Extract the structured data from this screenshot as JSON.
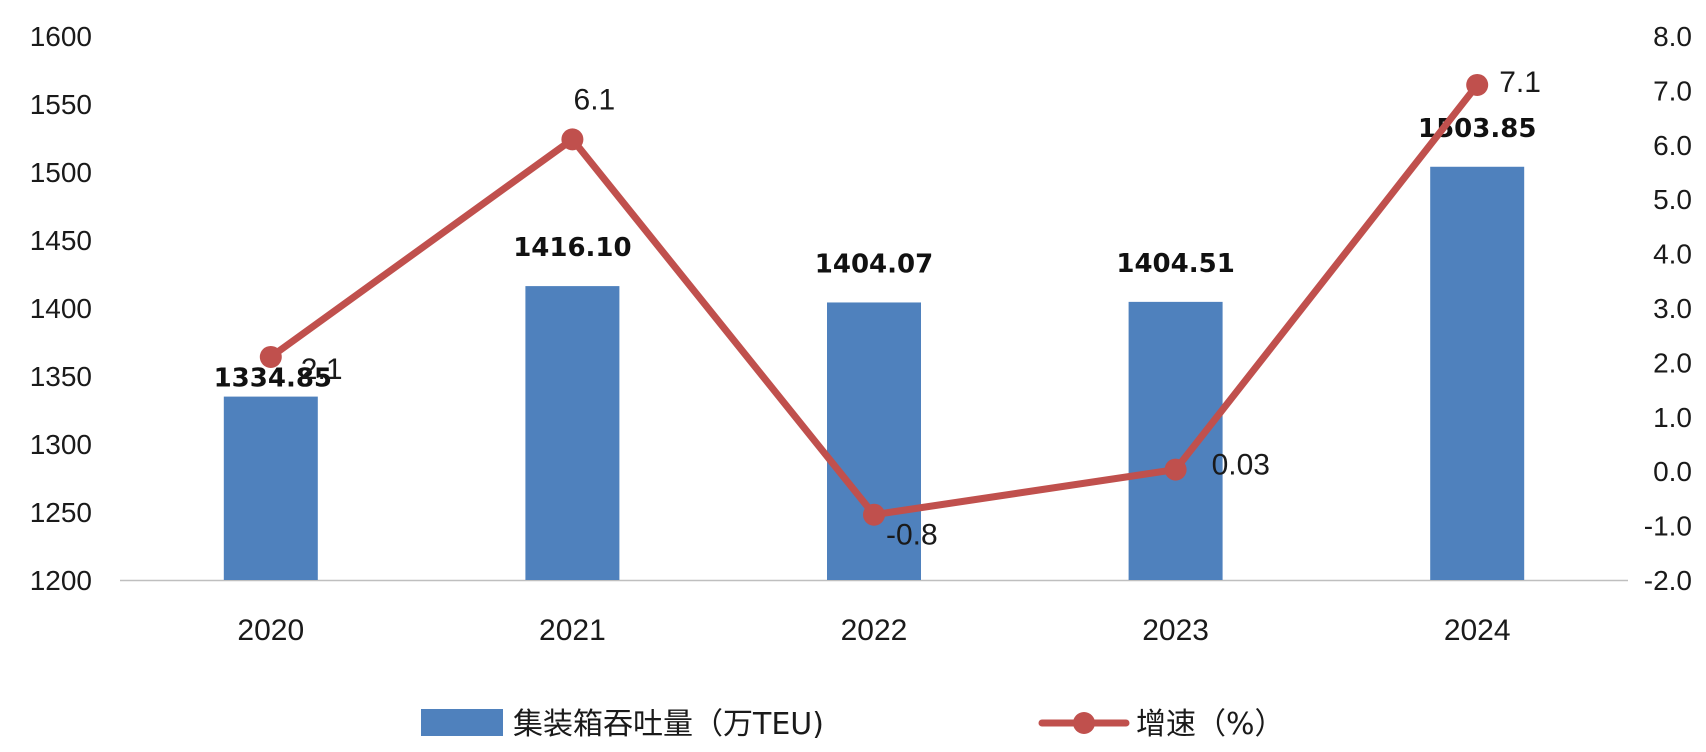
{
  "chart_data": {
    "type": "bar+line",
    "categories": [
      "2020",
      "2021",
      "2022",
      "2023",
      "2024"
    ],
    "series": [
      {
        "name": "集装箱吞吐量（万TEU)",
        "type": "bar",
        "axis": "left",
        "color": "#4f81bd",
        "values": [
          1334.85,
          1416.1,
          1404.07,
          1404.51,
          1503.85
        ],
        "labels": [
          "1334.85",
          "1416.10",
          "1404.07",
          "1404.51",
          "1503.85"
        ]
      },
      {
        "name": "增速（%）",
        "type": "line",
        "axis": "right",
        "color": "#c0504d",
        "values": [
          2.1,
          6.1,
          -0.8,
          0.03,
          7.1
        ],
        "labels": [
          "2.1",
          "6.1",
          "-0.8",
          "0.03",
          "7.1"
        ]
      }
    ],
    "y_left": {
      "range": [
        1200,
        1600
      ],
      "ticks": [
        "1200",
        "1250",
        "1300",
        "1350",
        "1400",
        "1450",
        "1500",
        "1550",
        "1600"
      ]
    },
    "y_right": {
      "range": [
        -2.0,
        8.0
      ],
      "ticks": [
        "-2.0",
        "-1.0",
        "0.0",
        "1.0",
        "2.0",
        "3.0",
        "4.0",
        "5.0",
        "6.0",
        "7.0",
        "8.0"
      ]
    },
    "grid": false,
    "legend_position": "bottom"
  }
}
